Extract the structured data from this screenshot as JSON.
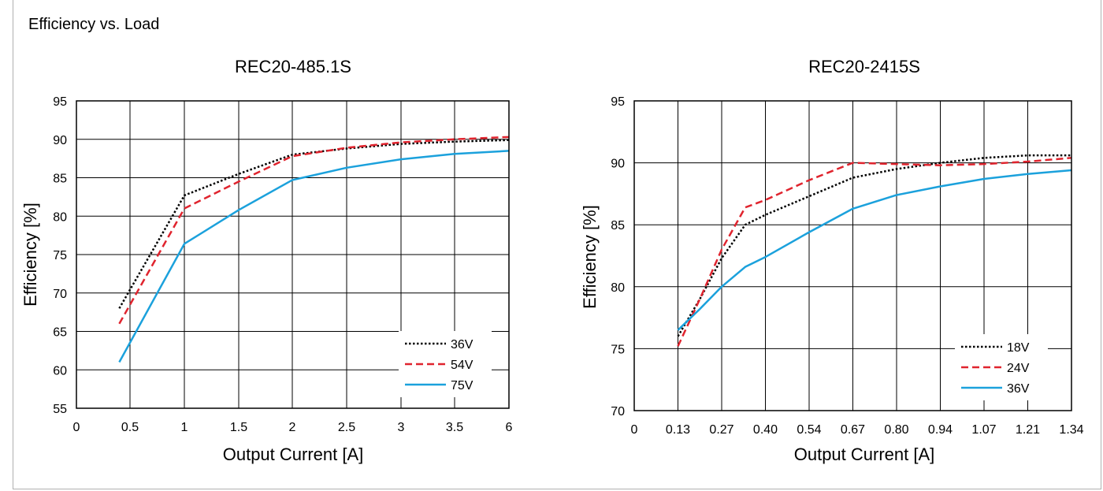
{
  "header": {
    "title": "Efficiency vs. Load"
  },
  "colors": {
    "36V_dotted": "#000000",
    "54V_dashed": "#e0242e",
    "75V_solid": "#1ba1dc"
  },
  "chart_data": [
    {
      "type": "line",
      "title": "REC20-485.1S",
      "xlabel": "Output Current [A]",
      "ylabel": "Efficiency [%]",
      "xlim": [
        0,
        6
      ],
      "ylim": [
        55,
        95
      ],
      "x_ticks": [
        0,
        0.5,
        1,
        1.5,
        2,
        2.5,
        3,
        3.5,
        6
      ],
      "x_tick_labels": [
        "0",
        "0.5",
        "1",
        "1.5",
        "2",
        "2.5",
        "3",
        "3.5",
        "6"
      ],
      "y_ticks": [
        55,
        60,
        65,
        70,
        75,
        80,
        85,
        90,
        95
      ],
      "grid": true,
      "legend": "bottom-right",
      "series": [
        {
          "name": "36V",
          "style": "dotted",
          "color": "#000000",
          "x": [
            0.4,
            1,
            1.5,
            2,
            2.5,
            3,
            3.5,
            6
          ],
          "y": [
            68,
            82.7,
            85.5,
            88,
            88.8,
            89.4,
            89.7,
            89.9
          ]
        },
        {
          "name": "54V",
          "style": "dashed",
          "color": "#e0242e",
          "x": [
            0.4,
            1,
            1.5,
            2,
            2.5,
            3,
            3.5,
            6
          ],
          "y": [
            66,
            81,
            84.5,
            87.8,
            88.9,
            89.6,
            90,
            90.3
          ]
        },
        {
          "name": "75V",
          "style": "solid",
          "color": "#1ba1dc",
          "x": [
            0.4,
            1,
            1.5,
            2,
            2.5,
            3,
            3.5,
            6
          ],
          "y": [
            61,
            76.4,
            80.8,
            84.7,
            86.3,
            87.4,
            88.1,
            88.5
          ]
        }
      ]
    },
    {
      "type": "line",
      "title": "REC20-2415S",
      "xlabel": "Output Current [A]",
      "ylabel": "Efficiency [%]",
      "xlim": [
        0,
        1.34
      ],
      "ylim": [
        70,
        95
      ],
      "x_ticks": [
        0,
        0.13,
        0.27,
        0.4,
        0.54,
        0.67,
        0.8,
        0.94,
        1.07,
        1.21,
        1.34
      ],
      "x_tick_labels": [
        "0",
        "0.13",
        "0.27",
        "0.40",
        "0.54",
        "0.67",
        "0.80",
        "0.94",
        "1.07",
        "1.21",
        "1.34"
      ],
      "y_ticks": [
        70,
        75,
        80,
        85,
        90,
        95
      ],
      "grid": true,
      "legend": "bottom-right",
      "series": [
        {
          "name": "18V",
          "style": "dotted",
          "color": "#000000",
          "x": [
            0.13,
            0.2,
            0.27,
            0.34,
            0.4,
            0.54,
            0.67,
            0.8,
            0.94,
            1.07,
            1.21,
            1.34
          ],
          "y": [
            76,
            79,
            82.3,
            85,
            85.8,
            87.3,
            88.8,
            89.5,
            90,
            90.4,
            90.6,
            90.6
          ]
        },
        {
          "name": "24V",
          "style": "dashed",
          "color": "#e0242e",
          "x": [
            0.13,
            0.2,
            0.27,
            0.34,
            0.4,
            0.54,
            0.67,
            0.8,
            0.94,
            1.07,
            1.21,
            1.34
          ],
          "y": [
            75.2,
            79,
            83,
            86.4,
            87,
            88.6,
            90,
            89.9,
            89.8,
            89.9,
            90.1,
            90.4
          ]
        },
        {
          "name": "36V",
          "style": "solid",
          "color": "#1ba1dc",
          "x": [
            0.13,
            0.2,
            0.27,
            0.34,
            0.4,
            0.54,
            0.67,
            0.8,
            0.94,
            1.07,
            1.21,
            1.34
          ],
          "y": [
            76.5,
            78.2,
            80,
            81.6,
            82.4,
            84.4,
            86.3,
            87.4,
            88.1,
            88.7,
            89.1,
            89.4
          ]
        }
      ]
    }
  ]
}
